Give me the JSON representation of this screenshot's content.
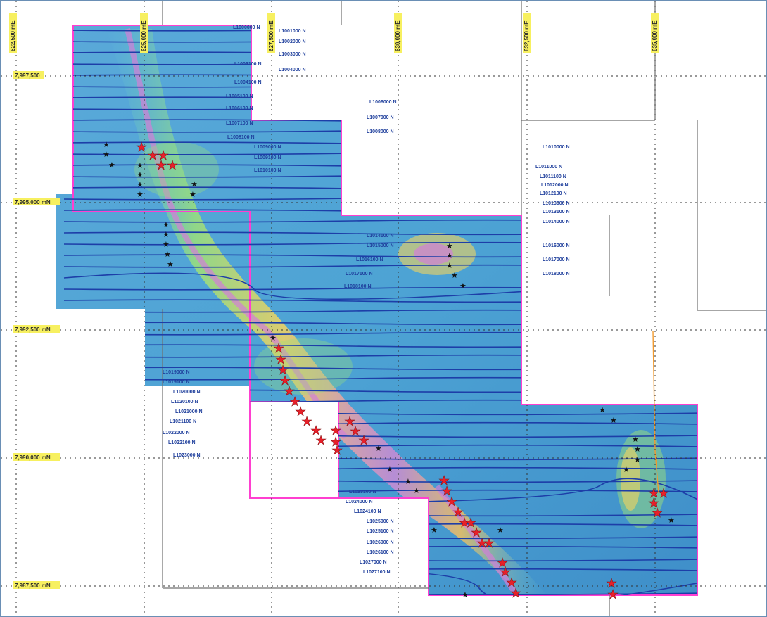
{
  "map": {
    "northing_labels": [
      {
        "text": "7,997,500"
      },
      {
        "text": "7,995,000 mN"
      },
      {
        "text": "7,992,500 mN"
      },
      {
        "text": "7,990,000 mN"
      },
      {
        "text": "7,987,500 mN"
      }
    ],
    "easting_labels": [
      {
        "text": "622,500 mE"
      },
      {
        "text": "625,000 mE"
      },
      {
        "text": "627,500 mE"
      },
      {
        "text": "630,000 mE"
      },
      {
        "text": "632,500 mE"
      },
      {
        "text": "635,000 mE"
      }
    ],
    "line_labels": [
      {
        "text": "L1000000 N"
      },
      {
        "text": "L1001000 N"
      },
      {
        "text": "L1002000 N"
      },
      {
        "text": "L1003000 N"
      },
      {
        "text": "L1003100 N"
      },
      {
        "text": "L1004000 N"
      },
      {
        "text": "L1004100 N"
      },
      {
        "text": "L1005100 N"
      },
      {
        "text": "L1006000 N"
      },
      {
        "text": "L1006100 N"
      },
      {
        "text": "L1007000 N"
      },
      {
        "text": "L1007100 N"
      },
      {
        "text": "L1008000 N"
      },
      {
        "text": "L1008100 N"
      },
      {
        "text": "L1009000 N"
      },
      {
        "text": "L1009100 N"
      },
      {
        "text": "L1010000 N"
      },
      {
        "text": "L1010100 N"
      },
      {
        "text": "L1011000 N"
      },
      {
        "text": "L1011100 N"
      },
      {
        "text": "L1012000 N"
      },
      {
        "text": "L1012100 N"
      },
      {
        "text": "L1013000 N"
      },
      {
        "text": "L1013100 N"
      },
      {
        "text": "L1014000 N"
      },
      {
        "text": "L1014100 N"
      },
      {
        "text": "L1015000 N"
      },
      {
        "text": "L1016000 N"
      },
      {
        "text": "L1016100 N"
      },
      {
        "text": "L1017000 N"
      },
      {
        "text": "L1017100 N"
      },
      {
        "text": "L1018000 N"
      },
      {
        "text": "L1018100 N"
      },
      {
        "text": "L1019000 N"
      },
      {
        "text": "L1019100 N"
      },
      {
        "text": "L1020000 N"
      },
      {
        "text": "L1020100 N"
      },
      {
        "text": "L1021000 N"
      },
      {
        "text": "L1021100 N"
      },
      {
        "text": "L1022000 N"
      },
      {
        "text": "L1022100 N"
      },
      {
        "text": "L1023000 N"
      },
      {
        "text": "L1023100 N"
      },
      {
        "text": "L1024000 N"
      },
      {
        "text": "L1024100 N"
      },
      {
        "text": "L1025000 N"
      },
      {
        "text": "L1025100 N"
      },
      {
        "text": "L1026000 N"
      },
      {
        "text": "L1026100 N"
      },
      {
        "text": "L1027000 N"
      },
      {
        "text": "L1027100 N"
      }
    ]
  }
}
